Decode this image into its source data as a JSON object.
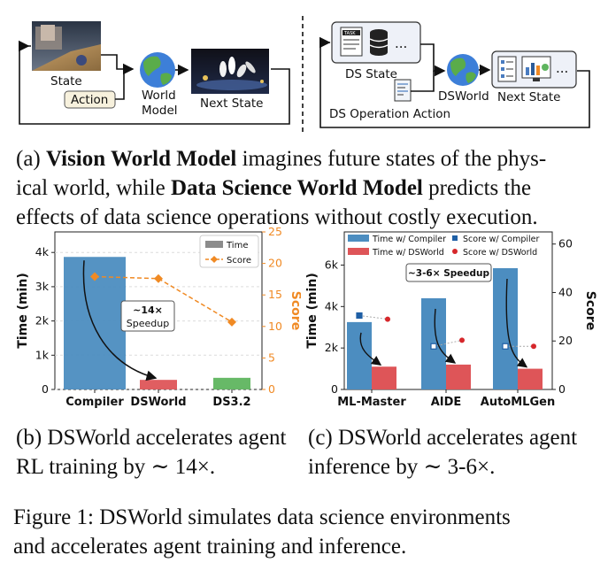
{
  "panel_a": {
    "left": {
      "state_label": "State",
      "action_label": "Action",
      "world_model_line1": "World",
      "world_model_line2": "Model",
      "next_state_label": "Next State"
    },
    "right": {
      "ds_state_label": "DS State",
      "task_label": "TASK",
      "ellipsis": "...",
      "dsworld_label": "DSWorld",
      "next_state_label": "Next State",
      "operation_label": "DS Operation Action"
    },
    "caption": {
      "prefix": "(a) ",
      "bold1": "Vision World Model",
      "mid1": " imagines future states of the phys-",
      "line2_start": "ical world, while ",
      "bold2": "Data Science World Model",
      "line2_end": " predicts the",
      "line3": "effects of data science operations without costly execution."
    }
  },
  "panel_b": {
    "legend": {
      "time": "Time",
      "score": "Score"
    },
    "annotation_line1": "~14×",
    "annotation_line2": "Speedup",
    "caption_line1": "(b) DSWorld accelerates agent",
    "caption_line2": "RL training by ∼ 14×.",
    "colors": {
      "compiler": "#4c8dc0",
      "dsworld": "#de5558",
      "ds32": "#5fb55f",
      "score": "#f08a24",
      "time_legend": "#8c8c8c"
    }
  },
  "panel_c": {
    "legend": {
      "time_compiler": "Time w/ Compiler",
      "time_dsworld": "Time w/ DSWorld",
      "score_compiler": "Score w/ Compiler",
      "score_dsworld": "Score w/ DSWorld"
    },
    "annotation": "~3-6× Speedup",
    "caption_line1": "(c) DSWorld accelerates agent",
    "caption_line2": "inference by ∼ 3-6×.",
    "colors": {
      "compiler": "#4c8dc0",
      "dsworld": "#de5558",
      "score_compiler": "#1f5fa5",
      "score_dsworld": "#d6272b"
    }
  },
  "figure_caption": {
    "line1": "Figure 1: DSWorld simulates data science environments",
    "line2": "and accelerates agent training and inference."
  },
  "chart_data": [
    {
      "type": "bar",
      "categories": [
        "Compiler",
        "DSWorld",
        "DS3.2"
      ],
      "ylabel": "Time (min)",
      "ylabel2": "Score",
      "ylim": [
        0,
        4600
      ],
      "yticks": [
        0,
        1000,
        2000,
        3000,
        4000
      ],
      "ytick_labels": [
        "0",
        "1k",
        "2k",
        "3k",
        "4k"
      ],
      "y2lim": [
        0,
        25
      ],
      "y2ticks": [
        0,
        5,
        10,
        15,
        20,
        25
      ],
      "series": [
        {
          "name": "Time",
          "values": [
            3870,
            280,
            340
          ]
        },
        {
          "name": "Score",
          "values": [
            17.9,
            17.6,
            10.7
          ]
        }
      ]
    },
    {
      "type": "bar",
      "categories": [
        "ML-Master",
        "AIDE",
        "AutoMLGen"
      ],
      "ylabel": "Time (min)",
      "ylabel2": "Score",
      "ylim": [
        0,
        7600
      ],
      "yticks": [
        0,
        2000,
        4000,
        6000
      ],
      "ytick_labels": [
        "0",
        "2k",
        "4k",
        "6k"
      ],
      "y2lim": [
        0,
        65
      ],
      "y2ticks": [
        0,
        20,
        40,
        60
      ],
      "series": [
        {
          "name": "Time w/ Compiler",
          "values": [
            3250,
            4400,
            5850
          ]
        },
        {
          "name": "Time w/ DSWorld",
          "values": [
            1100,
            1200,
            1000
          ]
        },
        {
          "name": "Score w/ Compiler",
          "values": [
            30.5,
            17.8,
            17.8
          ]
        },
        {
          "name": "Score w/ DSWorld",
          "values": [
            29.0,
            20.3,
            17.8
          ]
        }
      ]
    }
  ]
}
